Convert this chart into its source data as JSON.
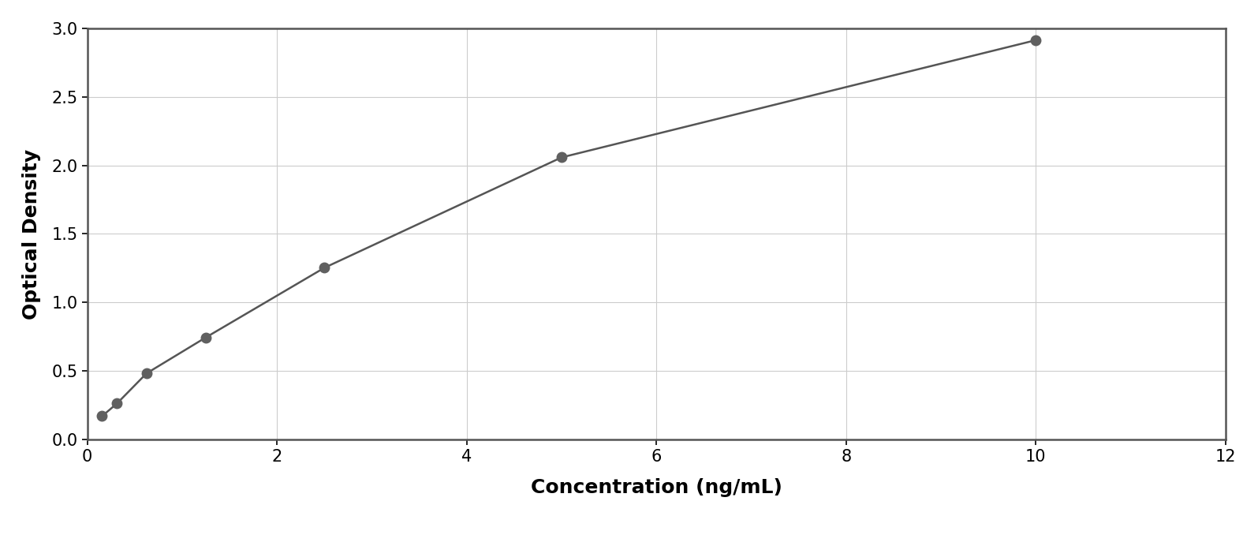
{
  "x_data": [
    0.156,
    0.313,
    0.625,
    1.25,
    2.5,
    5.0,
    10.0
  ],
  "y_data": [
    0.171,
    0.263,
    0.483,
    0.745,
    1.253,
    2.058,
    2.913
  ],
  "xlabel": "Concentration (ng/mL)",
  "ylabel": "Optical Density",
  "xlim": [
    0,
    12
  ],
  "ylim": [
    0,
    3.0
  ],
  "xticks": [
    0,
    2,
    4,
    6,
    8,
    10,
    12
  ],
  "yticks": [
    0,
    0.5,
    1.0,
    1.5,
    2.0,
    2.5,
    3.0
  ],
  "marker_color": "#606060",
  "line_color": "#555555",
  "grid_color": "#cccccc",
  "bg_color": "#ffffff",
  "outer_bg": "#ffffff",
  "spine_color": "#555555",
  "marker_size": 9,
  "line_width": 1.8,
  "xlabel_fontsize": 18,
  "ylabel_fontsize": 18,
  "tick_fontsize": 15
}
